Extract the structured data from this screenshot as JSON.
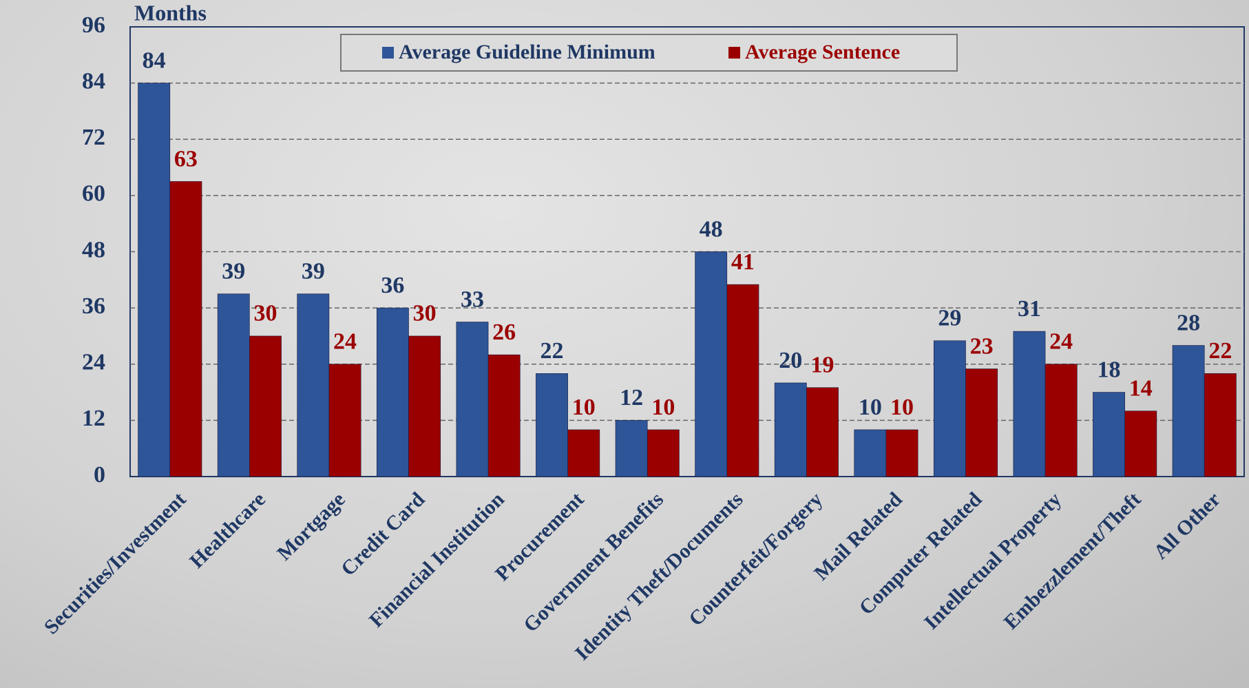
{
  "chart_data": {
    "type": "bar",
    "y_axis_label": "Months",
    "categories": [
      "Securities/Investment",
      "Healthcare",
      "Mortgage",
      "Credit Card",
      "Financial Institution",
      "Procurement",
      "Government Benefits",
      "Identity Theft/Documents",
      "Counterfeit/Forgery",
      "Mail Related",
      "Computer Related",
      "Intellectual Property",
      "Embezzlement/Theft",
      "All Other"
    ],
    "series": [
      {
        "name": "Average Guideline Minimum",
        "color": "#2e5597",
        "values": [
          84,
          39,
          39,
          36,
          33,
          22,
          12,
          48,
          20,
          10,
          29,
          31,
          18,
          28
        ]
      },
      {
        "name": "Average Sentence",
        "color": "#9b0000",
        "values": [
          63,
          30,
          24,
          30,
          26,
          10,
          10,
          41,
          19,
          10,
          23,
          24,
          14,
          22
        ]
      }
    ],
    "ylim": [
      0,
      96
    ],
    "yticks": [
      0,
      12,
      24,
      36,
      48,
      60,
      72,
      84,
      96
    ],
    "grid": true
  }
}
